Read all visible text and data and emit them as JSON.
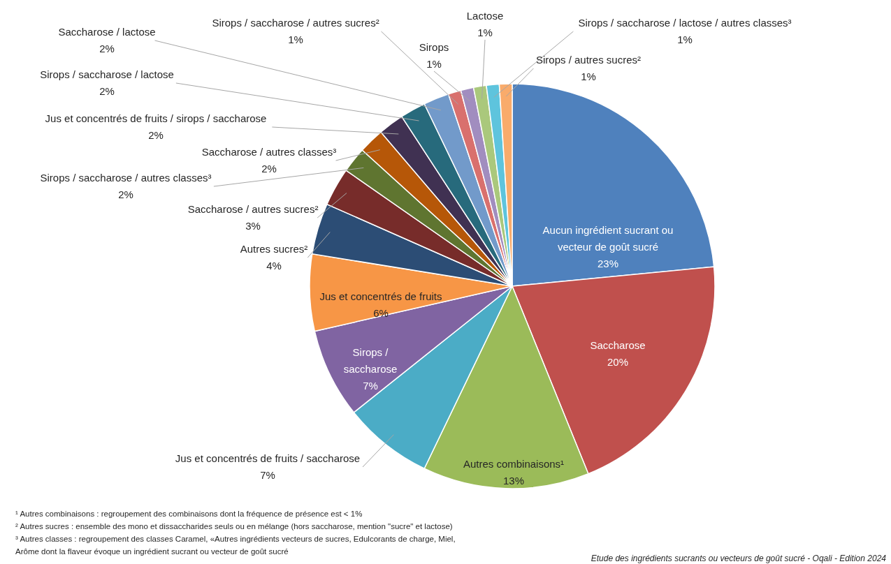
{
  "chart_data": {
    "type": "pie",
    "categories": [
      "Aucun ingrédient sucrant ou vecteur de goût sucré",
      "Saccharose",
      "Autres combinaisons¹",
      "Jus et concentrés de fruits / saccharose",
      "Sirops / saccharose",
      "Jus et concentrés de fruits",
      "Autres sucres²",
      "Saccharose / autres sucres²",
      "Sirops / saccharose / autres classes³",
      "Saccharose / autres classes³",
      "Jus et concentrés de fruits / sirops / saccharose",
      "Sirops / saccharose / lactose",
      "Saccharose / lactose",
      "Sirops / saccharose / autres sucres²",
      "Sirops",
      "Lactose",
      "Sirops / saccharose / lactose / autres classes³",
      "Sirops / autres sucres²"
    ],
    "values": [
      23,
      20,
      13,
      7,
      7,
      6,
      4,
      3,
      2,
      2,
      2,
      2,
      2,
      1,
      1,
      1,
      1,
      1
    ],
    "value_labels": [
      "23%",
      "20%",
      "13%",
      "7%",
      "7%",
      "6%",
      "4%",
      "3%",
      "2%",
      "2%",
      "2%",
      "2%",
      "2%",
      "1%",
      "1%",
      "1%",
      "1%",
      "1%"
    ],
    "colors": [
      "#4f81bd",
      "#c0504d",
      "#9bbb59",
      "#4bacc6",
      "#8064a2",
      "#f79646",
      "#2c4d75",
      "#772c2a",
      "#5f7530",
      "#b65708",
      "#403152",
      "#276a7c",
      "#729aca",
      "#d9706d",
      "#a18dbf",
      "#aac87c",
      "#5ec4dd",
      "#f9ab6b"
    ],
    "annotations": [
      "¹ Autres combinaisons : regroupement des combinaisons dont la fréquence de présence est < 1%",
      "² Autres sucres : ensemble des mono et dissaccharides seuls ou en mélange (hors saccharose, mention \"sucre\" et lactose)",
      "³ Autres classes : regroupement des classes Caramel, «Autres ingrédients vecteurs de sucres, Edulcorants de charge, Miel, Arôme dont la flaveur évoque un ingrédient sucrant ou vecteur de goût sucré",
      "Etude des ingrédients sucrants ou vecteurs de goût sucré - Oqali - Edition 2024"
    ]
  }
}
